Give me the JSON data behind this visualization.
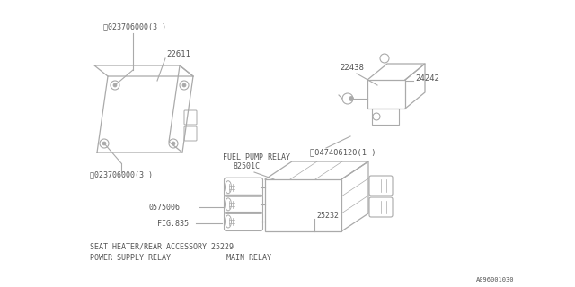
{
  "bg_color": "#ffffff",
  "line_color": "#aaaaaa",
  "text_color": "#555555",
  "font_size": 6.5,
  "watermark": "A096001030",
  "ecm_top_label": "ⓝ023706000(3 )",
  "ecm_bottom_label": "ⓝ023706000(3 )",
  "ecm_part": "22611",
  "sensor_top_label": "22438",
  "sensor_right_label": "24242",
  "sensor_bottom_label": "Ⓝ047406120(1 )",
  "relay_fuel_label": "FUEL PUMP RELAY",
  "relay_fuel_part": "82501C",
  "relay_part1": "0575006",
  "relay_part2": "25232",
  "relay_fig": "FIG.835",
  "relay_seat_label": "SEAT HEATER/REAR ACCESSORY 25229",
  "relay_power_label": "POWER SUPPLY RELAY",
  "relay_main_label": "MAIN RELAY"
}
